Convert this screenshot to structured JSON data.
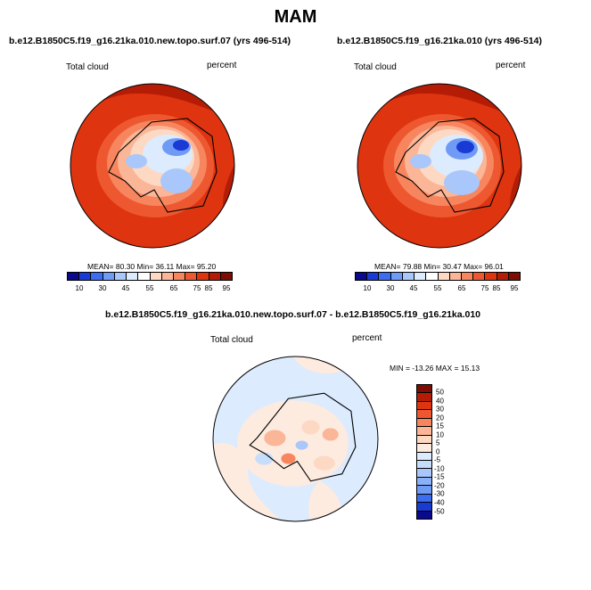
{
  "title": "MAM",
  "panels": [
    {
      "run": "b.e12.B1850C5.f19_g16.21ka.010.new.topo.surf.07 (yrs 496-514)",
      "field_label": "Total cloud",
      "units": "percent",
      "stats": "MEAN=  80.30  Min=  36.11  Max=  95.20"
    },
    {
      "run": "b.e12.B1850C5.f19_g16.21ka.010 (yrs 496-514)",
      "field_label": "Total cloud",
      "units": "percent",
      "stats": "MEAN=  79.88  Min=  30.47  Max=  96.01"
    }
  ],
  "abs_colorbar": {
    "colors": [
      "#0a0a8c",
      "#1a3ad6",
      "#3c6cf0",
      "#6f9af6",
      "#a9c7fa",
      "#dcebfd",
      "#ffffff",
      "#fdd9c4",
      "#fbb597",
      "#f7865f",
      "#ee5830",
      "#de3410",
      "#b41c06",
      "#7d0c02"
    ],
    "ticks": [
      "10",
      "30",
      "45",
      "55",
      "65",
      "75",
      "85",
      "95"
    ]
  },
  "diff_panel": {
    "run": "b.e12.B1850C5.f19_g16.21ka.010.new.topo.surf.07 - b.e12.B1850C5.f19_g16.21ka.010",
    "field_label": "Total cloud",
    "units": "percent",
    "minmax": "MIN = -13.26  MAX =  15.13"
  },
  "diff_colorbar": {
    "colors": [
      "#7d0c02",
      "#b41c06",
      "#de3410",
      "#ee5830",
      "#f7865f",
      "#fbb597",
      "#fdd9c4",
      "#fdebe0",
      "#dcebfd",
      "#c6ddfb",
      "#a9c7fa",
      "#8ab1f8",
      "#6f9af6",
      "#3c6cf0",
      "#1a3ad6",
      "#0a0a8c"
    ],
    "ticks": [
      "50",
      "40",
      "30",
      "20",
      "15",
      "10",
      "5",
      "0",
      "-5",
      "-10",
      "-15",
      "-20",
      "-30",
      "-40",
      "-50"
    ]
  }
}
